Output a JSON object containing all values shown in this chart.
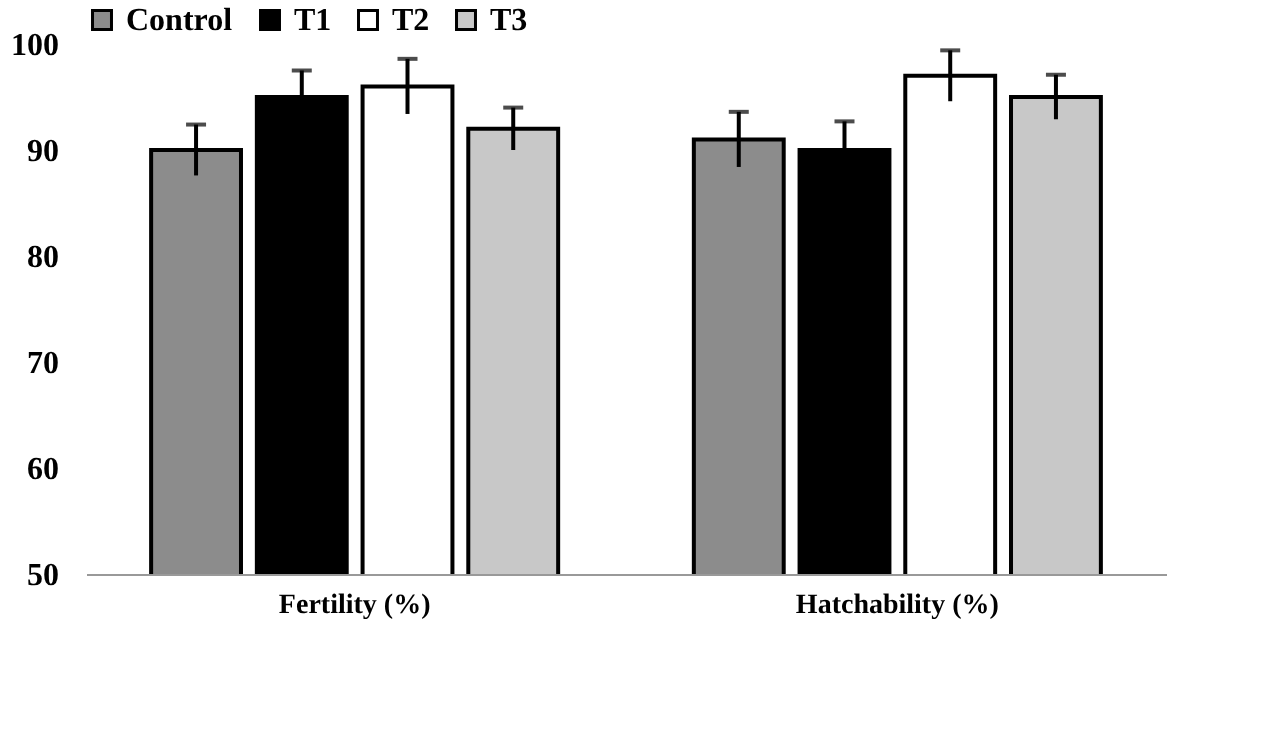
{
  "chart_data": {
    "type": "bar",
    "categories": [
      "Fertility (%)",
      "Hatchability (%)"
    ],
    "series": [
      {
        "name": "Control",
        "color": "#8c8c8c",
        "values": [
          90,
          91
        ],
        "errors": [
          2.4,
          2.6
        ]
      },
      {
        "name": "T1",
        "color": "#000000",
        "values": [
          95,
          90
        ],
        "errors": [
          2.5,
          2.7
        ]
      },
      {
        "name": "T2",
        "color": "#ffffff",
        "values": [
          96,
          97
        ],
        "errors": [
          2.6,
          2.4
        ]
      },
      {
        "name": "T3",
        "color": "#c8c8c8",
        "values": [
          92,
          95
        ],
        "errors": [
          2.0,
          2.1
        ]
      }
    ],
    "ylim": [
      50,
      100
    ],
    "yticks": [
      50,
      60,
      70,
      80,
      90,
      100
    ],
    "grid": false,
    "legend": "top"
  }
}
